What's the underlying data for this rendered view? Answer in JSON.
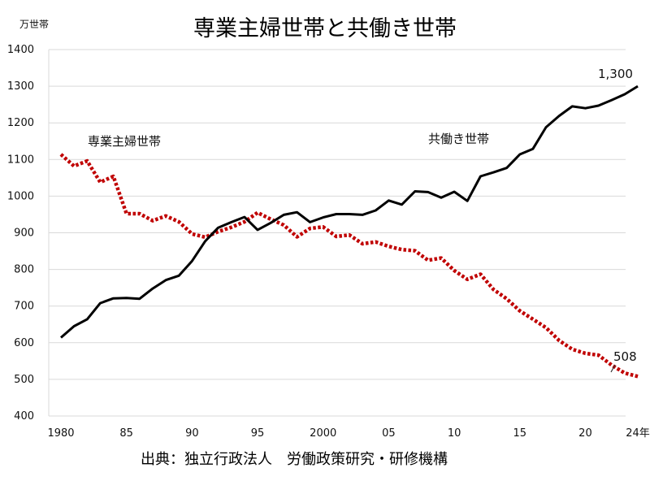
{
  "chart_data": {
    "type": "line",
    "title": "専業主婦世帯と共働き世帯",
    "y_unit": "万世帯",
    "ylim": [
      400,
      1400
    ],
    "yticks": [
      400,
      500,
      600,
      700,
      800,
      900,
      1000,
      1100,
      1200,
      1300,
      1400
    ],
    "xlim": [
      1980,
      2024
    ],
    "xtick_values": [
      1980,
      1985,
      1990,
      1995,
      2000,
      2005,
      2010,
      2015,
      2020,
      2024
    ],
    "xtick_labels": [
      "1980",
      "85",
      "90",
      "95",
      "2000",
      "05",
      "10",
      "15",
      "20",
      "24年"
    ],
    "grid": "horizontal",
    "source": "出典：独立行政法人　労働政策研究・研修機構",
    "x": [
      1980,
      1981,
      1982,
      1983,
      1984,
      1985,
      1986,
      1987,
      1988,
      1989,
      1990,
      1991,
      1992,
      1993,
      1994,
      1995,
      1996,
      1997,
      1998,
      1999,
      2000,
      2001,
      2002,
      2003,
      2004,
      2005,
      2006,
      2007,
      2008,
      2009,
      2010,
      2011,
      2012,
      2013,
      2014,
      2015,
      2016,
      2017,
      2018,
      2019,
      2020,
      2021,
      2022,
      2023,
      2024
    ],
    "series": [
      {
        "name": "専業主婦世帯",
        "color": "#c00000",
        "style": "dotted",
        "end_label": "508",
        "values": [
          1114,
          1082,
          1096,
          1038,
          1054,
          952,
          952,
          933,
          946,
          930,
          897,
          888,
          903,
          915,
          930,
          955,
          937,
          921,
          889,
          912,
          916,
          890,
          894,
          870,
          875,
          863,
          854,
          851,
          825,
          831,
          797,
          773,
          787,
          745,
          720,
          687,
          664,
          641,
          606,
          582,
          571,
          566,
          539,
          517,
          508
        ]
      },
      {
        "name": "共働き世帯",
        "color": "#000000",
        "style": "solid",
        "end_label": "1,300",
        "values": [
          614,
          645,
          664,
          708,
          721,
          722,
          720,
          748,
          771,
          783,
          823,
          877,
          914,
          929,
          943,
          908,
          927,
          949,
          956,
          929,
          942,
          951,
          951,
          949,
          961,
          988,
          977,
          1013,
          1011,
          996,
          1012,
          987,
          1054,
          1065,
          1077,
          1114,
          1129,
          1188,
          1219,
          1245,
          1240,
          1247,
          1262,
          1278,
          1300
        ]
      }
    ]
  }
}
